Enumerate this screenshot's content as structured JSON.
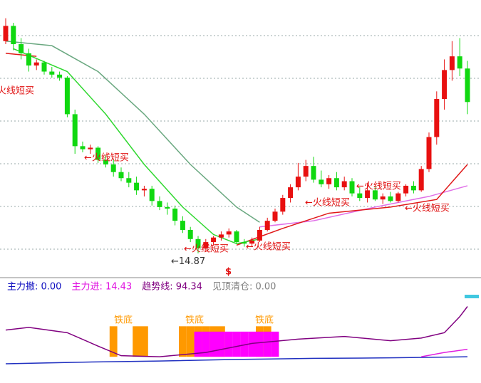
{
  "chart_data": {
    "type": "candlestick",
    "ylim": [
      13.5,
      31.5
    ],
    "up_color": "#e81010",
    "down_color": "#10d810",
    "candles": [
      [
        28.8,
        30.3,
        28.6,
        29.8
      ],
      [
        29.8,
        30.0,
        28.2,
        28.6
      ],
      [
        28.6,
        29.0,
        27.6,
        28.0
      ],
      [
        28.0,
        28.3,
        26.8,
        27.2
      ],
      [
        27.2,
        27.6,
        26.9,
        27.4
      ],
      [
        27.4,
        27.5,
        26.6,
        26.8
      ],
      [
        26.8,
        27.1,
        26.4,
        26.6
      ],
      [
        26.6,
        26.8,
        26.2,
        26.4
      ],
      [
        26.4,
        26.5,
        23.8,
        24.0
      ],
      [
        24.0,
        24.3,
        21.4,
        21.9
      ],
      [
        21.9,
        22.2,
        21.5,
        21.7
      ],
      [
        21.7,
        22.0,
        21.4,
        21.8
      ],
      [
        21.8,
        21.9,
        20.8,
        21.0
      ],
      [
        21.0,
        21.3,
        20.5,
        20.7
      ],
      [
        20.7,
        21.0,
        19.9,
        20.2
      ],
      [
        20.2,
        20.5,
        19.6,
        19.8
      ],
      [
        19.8,
        20.2,
        19.2,
        19.5
      ],
      [
        19.5,
        19.9,
        18.7,
        19.0
      ],
      [
        19.0,
        19.3,
        18.6,
        19.1
      ],
      [
        19.1,
        19.3,
        18.0,
        18.3
      ],
      [
        18.3,
        18.6,
        17.7,
        17.9
      ],
      [
        17.9,
        18.2,
        17.4,
        17.8
      ],
      [
        17.8,
        18.0,
        16.7,
        17.0
      ],
      [
        17.0,
        17.3,
        16.2,
        16.4
      ],
      [
        16.4,
        16.6,
        15.6,
        15.8
      ],
      [
        15.8,
        16.0,
        14.87,
        15.2
      ],
      [
        15.2,
        15.8,
        15.0,
        15.6
      ],
      [
        15.6,
        16.0,
        15.4,
        15.9
      ],
      [
        15.9,
        16.3,
        15.7,
        16.1
      ],
      [
        16.1,
        16.5,
        15.9,
        16.3
      ],
      [
        16.3,
        16.4,
        15.5,
        15.6
      ],
      [
        15.6,
        15.8,
        15.3,
        15.5
      ],
      [
        15.5,
        15.9,
        15.3,
        15.7
      ],
      [
        15.7,
        16.6,
        15.6,
        16.4
      ],
      [
        16.4,
        17.2,
        16.3,
        17.0
      ],
      [
        17.0,
        17.8,
        16.9,
        17.6
      ],
      [
        17.6,
        18.7,
        17.4,
        18.5
      ],
      [
        18.5,
        19.4,
        18.2,
        19.2
      ],
      [
        19.2,
        20.8,
        19.0,
        19.9
      ],
      [
        19.9,
        21.0,
        19.6,
        20.6
      ],
      [
        20.6,
        21.2,
        19.5,
        19.7
      ],
      [
        19.7,
        20.3,
        19.2,
        19.4
      ],
      [
        19.4,
        20.0,
        19.1,
        19.8
      ],
      [
        19.8,
        20.2,
        19.0,
        19.2
      ],
      [
        19.2,
        19.9,
        19.0,
        19.6
      ],
      [
        19.6,
        19.8,
        18.6,
        18.8
      ],
      [
        18.8,
        19.2,
        18.3,
        18.5
      ],
      [
        18.5,
        19.5,
        18.2,
        19.0
      ],
      [
        19.0,
        19.3,
        18.3,
        18.4
      ],
      [
        18.4,
        18.8,
        18.1,
        18.6
      ],
      [
        18.6,
        18.9,
        18.2,
        18.3
      ],
      [
        18.3,
        18.9,
        18.2,
        18.8
      ],
      [
        18.8,
        19.4,
        18.6,
        19.3
      ],
      [
        19.3,
        19.6,
        18.8,
        19.0
      ],
      [
        19.0,
        20.6,
        18.9,
        20.4
      ],
      [
        20.4,
        22.8,
        20.2,
        22.5
      ],
      [
        22.5,
        25.5,
        22.0,
        25.0
      ],
      [
        25.0,
        27.6,
        24.3,
        26.9
      ],
      [
        26.9,
        28.8,
        26.2,
        27.8
      ],
      [
        27.8,
        29.0,
        26.5,
        27.0
      ],
      [
        27.0,
        27.5,
        24.0,
        24.8
      ]
    ],
    "lines": [
      {
        "color": "#6aa880",
        "x": [
          0,
          6,
          12,
          18,
          24,
          30,
          33
        ],
        "values": [
          28.8,
          28.5,
          26.8,
          24.0,
          20.7,
          17.9,
          16.9
        ]
      },
      {
        "color": "#e070e8",
        "x": [
          33,
          40,
          48,
          55,
          60
        ],
        "values": [
          16.6,
          17.0,
          17.9,
          18.6,
          19.3
        ]
      },
      {
        "color": "#e01818",
        "x": [
          0,
          4
        ],
        "values": [
          28.0,
          27.8
        ]
      },
      {
        "color": "#e01818",
        "x": [
          30,
          36,
          42,
          50,
          56,
          60
        ],
        "values": [
          15.4,
          16.5,
          17.5,
          17.9,
          18.4,
          20.7
        ]
      },
      {
        "color": "#30d830",
        "x": [
          1,
          8,
          13,
          18,
          23,
          27,
          30,
          33
        ],
        "values": [
          28.3,
          26.8,
          24.0,
          20.7,
          17.9,
          16.1,
          15.5,
          15.8
        ]
      }
    ],
    "annotations": [
      "火线短买",
      "←火线短买",
      "←火线短买",
      "←火线短买",
      "←火线短买",
      "←火线短买",
      "←火线短买"
    ],
    "low_label": {
      "value": 14.87,
      "label": "←14.87"
    },
    "signal_mark": "$",
    "indicator": {
      "ylim": [
        -45,
        100
      ],
      "labels": [
        "主力撤: 0.00",
        "主力进: 14.43",
        "趋势线: 94.34",
        "见顶清仓: 0.00"
      ],
      "label_colors": [
        "#1010c0",
        "#e010e0",
        "#800080",
        "#808080"
      ],
      "lines": [
        {
          "color": "#800080",
          "x": [
            0,
            3,
            8,
            12,
            15,
            20,
            26,
            32,
            38,
            44,
            50,
            54,
            57,
            59,
            60
          ],
          "values": [
            50,
            55,
            45,
            20,
            2,
            0,
            8,
            25,
            33,
            38,
            30,
            35,
            45,
            75,
            94
          ]
        },
        {
          "color": "#2030c0",
          "x": [
            0,
            10,
            20,
            30,
            40,
            50,
            60
          ],
          "values": [
            -13,
            -10,
            -8,
            -5,
            -3,
            -2,
            0
          ]
        },
        {
          "color": "#e020e0",
          "x": [
            54,
            57,
            60
          ],
          "values": [
            0,
            8,
            14
          ]
        }
      ],
      "orange_color": "#ff9900",
      "orange": [
        null,
        null,
        null,
        null,
        null,
        null,
        null,
        null,
        null,
        null,
        null,
        null,
        null,
        null,
        57,
        null,
        null,
        57,
        57,
        null,
        null,
        null,
        null,
        57,
        57,
        57,
        57,
        57,
        57,
        null,
        null,
        null,
        null,
        57,
        57,
        null,
        null,
        null,
        null,
        null,
        null,
        null,
        null,
        null,
        null,
        null,
        null,
        null,
        null,
        null,
        null,
        null,
        null,
        null,
        null,
        null,
        null,
        null,
        null,
        null,
        null
      ],
      "magenta_color": "#ff00ff",
      "magenta": [
        null,
        null,
        null,
        null,
        null,
        null,
        null,
        null,
        null,
        null,
        null,
        null,
        null,
        null,
        null,
        null,
        null,
        null,
        null,
        null,
        null,
        null,
        null,
        null,
        null,
        47,
        47,
        47,
        47,
        47,
        47,
        47,
        47,
        47,
        47,
        47,
        null,
        null,
        null,
        null,
        null,
        null,
        null,
        null,
        null,
        null,
        null,
        null,
        null,
        null,
        null,
        null,
        null,
        null,
        null,
        null,
        null,
        null,
        null,
        null,
        null
      ],
      "tiedi": [
        "铁底",
        "铁底",
        "铁底"
      ]
    }
  }
}
